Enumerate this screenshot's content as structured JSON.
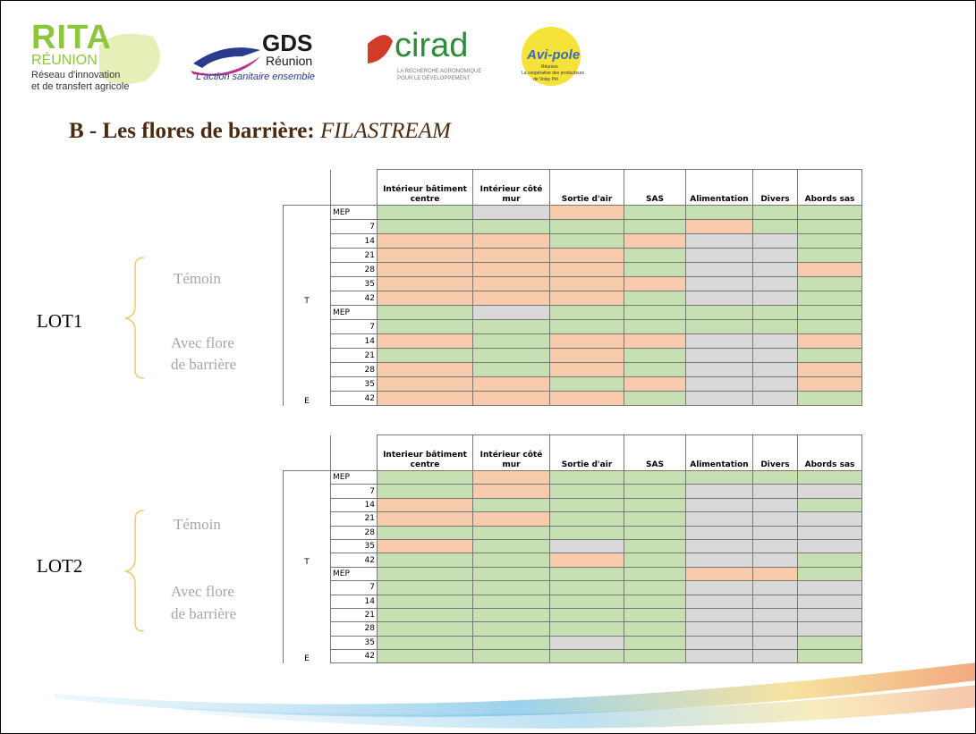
{
  "header": {
    "rita": {
      "name": "RITA",
      "region": "RÉUNION",
      "line1": "Réseau d'innovation",
      "line2": "et de transfert agricole"
    },
    "gds": {
      "name": "GDS",
      "region": "Réunion",
      "slogan": "L'action sanitaire ensemble"
    },
    "cirad": {
      "name": "cirad",
      "line1": "LA RECHERCHE AGRONOMIQUE",
      "line2": "POUR LE DÉVELOPPEMENT"
    },
    "avipole": {
      "name": "Avi-pole",
      "region": "Réunion",
      "line1": "La coopérative des producteurs",
      "line2": "de Volay Péi"
    }
  },
  "title": {
    "main": "B - Les flores de barrière:",
    "italic": "FILASTREAM"
  },
  "palette": {
    "g": "#c6e0b4",
    "o": "#f8cbad",
    "x": "#d9d9d9"
  },
  "tables": [
    {
      "lot": "LOT1",
      "columns": [
        "Intérieur bâtiment centre",
        "Intérieur côté mur",
        "Sortie d'air",
        "SAS",
        "Alimentation",
        "Divers",
        "Abords sas"
      ],
      "groups": [
        {
          "label": [
            "Témoin"
          ],
          "letter": "T",
          "rows": [
            {
              "label": "MEP",
              "cells": [
                "g",
                "x",
                "o",
                "g",
                "g",
                "g",
                "g"
              ]
            },
            {
              "label": 7,
              "cells": [
                "g",
                "g",
                "g",
                "g",
                "o",
                "g",
                "g"
              ]
            },
            {
              "label": 14,
              "cells": [
                "o",
                "o",
                "g",
                "o",
                "x",
                "x",
                "g"
              ]
            },
            {
              "label": 21,
              "cells": [
                "o",
                "o",
                "o",
                "g",
                "x",
                "x",
                "g"
              ]
            },
            {
              "label": 28,
              "cells": [
                "o",
                "o",
                "o",
                "g",
                "x",
                "x",
                "o"
              ]
            },
            {
              "label": 35,
              "cells": [
                "o",
                "o",
                "o",
                "o",
                "x",
                "x",
                "g"
              ]
            },
            {
              "label": 42,
              "cells": [
                "o",
                "o",
                "o",
                "g",
                "x",
                "x",
                "g"
              ]
            }
          ]
        },
        {
          "label": [
            "Avec flore",
            "de barrière"
          ],
          "letter": "E",
          "rows": [
            {
              "label": "MEP",
              "cells": [
                "g",
                "x",
                "g",
                "g",
                "g",
                "g",
                "g"
              ]
            },
            {
              "label": 7,
              "cells": [
                "g",
                "g",
                "g",
                "g",
                "g",
                "g",
                "g"
              ]
            },
            {
              "label": 14,
              "cells": [
                "o",
                "g",
                "o",
                "o",
                "x",
                "x",
                "o"
              ]
            },
            {
              "label": 21,
              "cells": [
                "g",
                "g",
                "o",
                "g",
                "x",
                "x",
                "g"
              ]
            },
            {
              "label": 28,
              "cells": [
                "o",
                "g",
                "o",
                "g",
                "x",
                "x",
                "o"
              ]
            },
            {
              "label": 35,
              "cells": [
                "o",
                "o",
                "g",
                "o",
                "x",
                "x",
                "o"
              ]
            },
            {
              "label": 42,
              "cells": [
                "o",
                "o",
                "o",
                "g",
                "x",
                "x",
                "g"
              ]
            }
          ]
        }
      ]
    },
    {
      "lot": "LOT2",
      "columns": [
        "Interieur bâtiment centre",
        "Intérieur côté mur",
        "Sortie d'air",
        "SAS",
        "Alimentation",
        "Divers",
        "Abords sas"
      ],
      "groups": [
        {
          "label": [
            "Témoin"
          ],
          "letter": "T",
          "rows": [
            {
              "label": "MEP",
              "cells": [
                "g",
                "o",
                "g",
                "g",
                "g",
                "g",
                "g"
              ]
            },
            {
              "label": 7,
              "cells": [
                "g",
                "o",
                "g",
                "g",
                "x",
                "x",
                "x"
              ]
            },
            {
              "label": 14,
              "cells": [
                "o",
                "g",
                "g",
                "g",
                "x",
                "x",
                "g"
              ]
            },
            {
              "label": 21,
              "cells": [
                "o",
                "o",
                "g",
                "g",
                "x",
                "x",
                "x"
              ]
            },
            {
              "label": 28,
              "cells": [
                "g",
                "g",
                "g",
                "g",
                "x",
                "x",
                "x"
              ]
            },
            {
              "label": 35,
              "cells": [
                "o",
                "g",
                "x",
                "g",
                "x",
                "x",
                "x"
              ]
            },
            {
              "label": 42,
              "cells": [
                "g",
                "g",
                "o",
                "g",
                "x",
                "x",
                "g"
              ]
            }
          ]
        },
        {
          "label": [
            "Avec flore",
            "de barrière"
          ],
          "letter": "E",
          "rows": [
            {
              "label": "MEP",
              "cells": [
                "g",
                "g",
                "g",
                "g",
                "o",
                "o",
                "g"
              ]
            },
            {
              "label": 7,
              "cells": [
                "g",
                "g",
                "g",
                "g",
                "x",
                "x",
                "x"
              ]
            },
            {
              "label": 14,
              "cells": [
                "g",
                "g",
                "g",
                "g",
                "x",
                "x",
                "x"
              ]
            },
            {
              "label": 21,
              "cells": [
                "g",
                "g",
                "g",
                "g",
                "x",
                "x",
                "x"
              ]
            },
            {
              "label": 28,
              "cells": [
                "g",
                "g",
                "g",
                "g",
                "x",
                "x",
                "x"
              ]
            },
            {
              "label": 35,
              "cells": [
                "g",
                "g",
                "x",
                "g",
                "x",
                "x",
                "g"
              ]
            },
            {
              "label": 42,
              "cells": [
                "g",
                "g",
                "g",
                "g",
                "x",
                "x",
                "g"
              ]
            }
          ]
        }
      ]
    }
  ]
}
